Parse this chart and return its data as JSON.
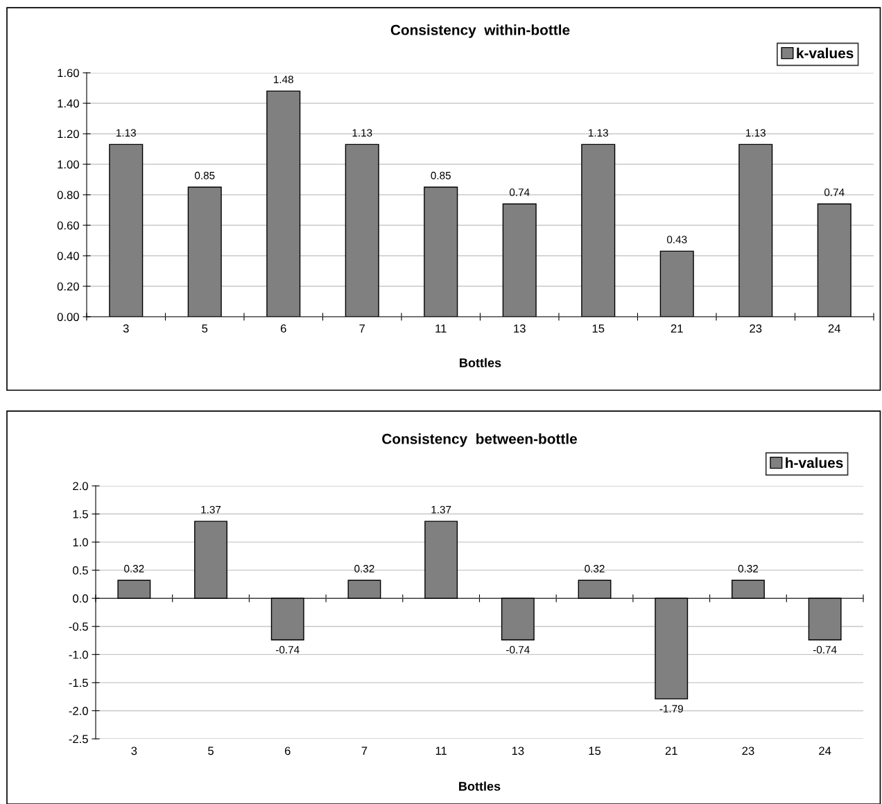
{
  "chart_data": [
    {
      "type": "bar",
      "title": "Consistency  within-bottle",
      "xlabel": "Bottles",
      "categories": [
        "3",
        "5",
        "6",
        "7",
        "11",
        "13",
        "15",
        "21",
        "23",
        "24"
      ],
      "series": [
        {
          "name": "k-values",
          "color": "#808080",
          "values": [
            1.13,
            0.85,
            1.48,
            1.13,
            0.85,
            0.74,
            1.13,
            0.43,
            1.13,
            0.74
          ]
        }
      ],
      "ylim": [
        0,
        1.6
      ],
      "yticks": [
        {
          "value": 0,
          "label": "0.00"
        },
        {
          "value": 0.2,
          "label": "0.20"
        },
        {
          "value": 0.4,
          "label": "0.40"
        },
        {
          "value": 0.6,
          "label": "0.60"
        },
        {
          "value": 0.8,
          "label": "0.80"
        },
        {
          "value": 1.0,
          "label": "1.00"
        },
        {
          "value": 1.2,
          "label": "1.20"
        },
        {
          "value": 1.4,
          "label": "1.40"
        },
        {
          "value": 1.6,
          "label": "1.60"
        }
      ],
      "grid": "y",
      "legend": "top right",
      "data_labels": true
    },
    {
      "type": "bar",
      "title": "Consistency  between-bottle",
      "xlabel": "Bottles",
      "categories": [
        "3",
        "5",
        "6",
        "7",
        "11",
        "13",
        "15",
        "21",
        "23",
        "24"
      ],
      "series": [
        {
          "name": "h-values",
          "color": "#808080",
          "values": [
            0.32,
            1.37,
            -0.74,
            0.32,
            1.37,
            -0.74,
            0.32,
            -1.79,
            0.32,
            -0.74
          ]
        }
      ],
      "ylim": [
        -2.5,
        2.0
      ],
      "yticks": [
        {
          "value": -2.5,
          "label": "-2.5"
        },
        {
          "value": -2.0,
          "label": "-2.0"
        },
        {
          "value": -1.5,
          "label": "-1.5"
        },
        {
          "value": -1.0,
          "label": "-1.0"
        },
        {
          "value": -0.5,
          "label": "-0.5"
        },
        {
          "value": 0,
          "label": "0.0"
        },
        {
          "value": 0.5,
          "label": "0.5"
        },
        {
          "value": 1.0,
          "label": "1.0"
        },
        {
          "value": 1.5,
          "label": "1.5"
        },
        {
          "value": 2.0,
          "label": "2.0"
        }
      ],
      "grid": "y",
      "legend": "top right",
      "data_labels": true
    }
  ]
}
